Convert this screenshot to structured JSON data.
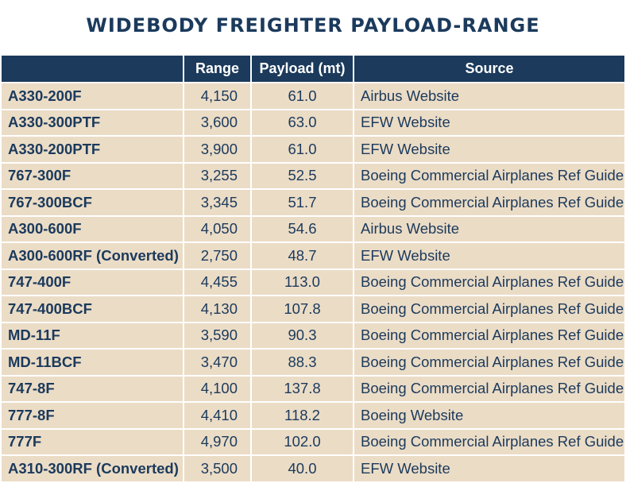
{
  "title": "WIDEBODY FREIGHTER PAYLOAD-RANGE",
  "columns": [
    "",
    "Range",
    "Payload (mt)",
    "Source"
  ],
  "rows": [
    {
      "aircraft": "A330-200F",
      "range": "4,150",
      "payload": "61.0",
      "source": "Airbus Website"
    },
    {
      "aircraft": "A330-300PTF",
      "range": "3,600",
      "payload": "63.0",
      "source": "EFW Website"
    },
    {
      "aircraft": "A330-200PTF",
      "range": "3,900",
      "payload": "61.0",
      "source": "EFW Website"
    },
    {
      "aircraft": "767-300F",
      "range": "3,255",
      "payload": "52.5",
      "source": "Boeing Commercial Airplanes Ref Guide"
    },
    {
      "aircraft": "767-300BCF",
      "range": "3,345",
      "payload": "51.7",
      "source": "Boeing Commercial Airplanes Ref Guide"
    },
    {
      "aircraft": "A300-600F",
      "range": "4,050",
      "payload": "54.6",
      "source": "Airbus Website"
    },
    {
      "aircraft": "A300-600RF (Converted)",
      "range": "2,750",
      "payload": "48.7",
      "source": "EFW Website"
    },
    {
      "aircraft": "747-400F",
      "range": "4,455",
      "payload": "113.0",
      "source": "Boeing Commercial Airplanes Ref Guide"
    },
    {
      "aircraft": "747-400BCF",
      "range": "4,130",
      "payload": "107.8",
      "source": "Boeing Commercial Airplanes Ref Guide"
    },
    {
      "aircraft": "MD-11F",
      "range": "3,590",
      "payload": "90.3",
      "source": "Boeing Commercial Airplanes Ref Guide"
    },
    {
      "aircraft": "MD-11BCF",
      "range": "3,470",
      "payload": "88.3",
      "source": "Boeing Commercial Airplanes Ref Guide"
    },
    {
      "aircraft": "747-8F",
      "range": "4,100",
      "payload": "137.8",
      "source": "Boeing Commercial Airplanes Ref Guide"
    },
    {
      "aircraft": "777-8F",
      "range": "4,410",
      "payload": "118.2",
      "source": "Boeing Website"
    },
    {
      "aircraft": "777F",
      "range": "4,970",
      "payload": "102.0",
      "source": "Boeing Commercial Airplanes Ref Guide"
    },
    {
      "aircraft": "A310-300RF (Converted)",
      "range": "3,500",
      "payload": "40.0",
      "source": "EFW Website"
    }
  ],
  "colors": {
    "header_bg": "#1b3a5c",
    "row_bg": "#ebdcc6",
    "text": "#1b3a5c"
  }
}
